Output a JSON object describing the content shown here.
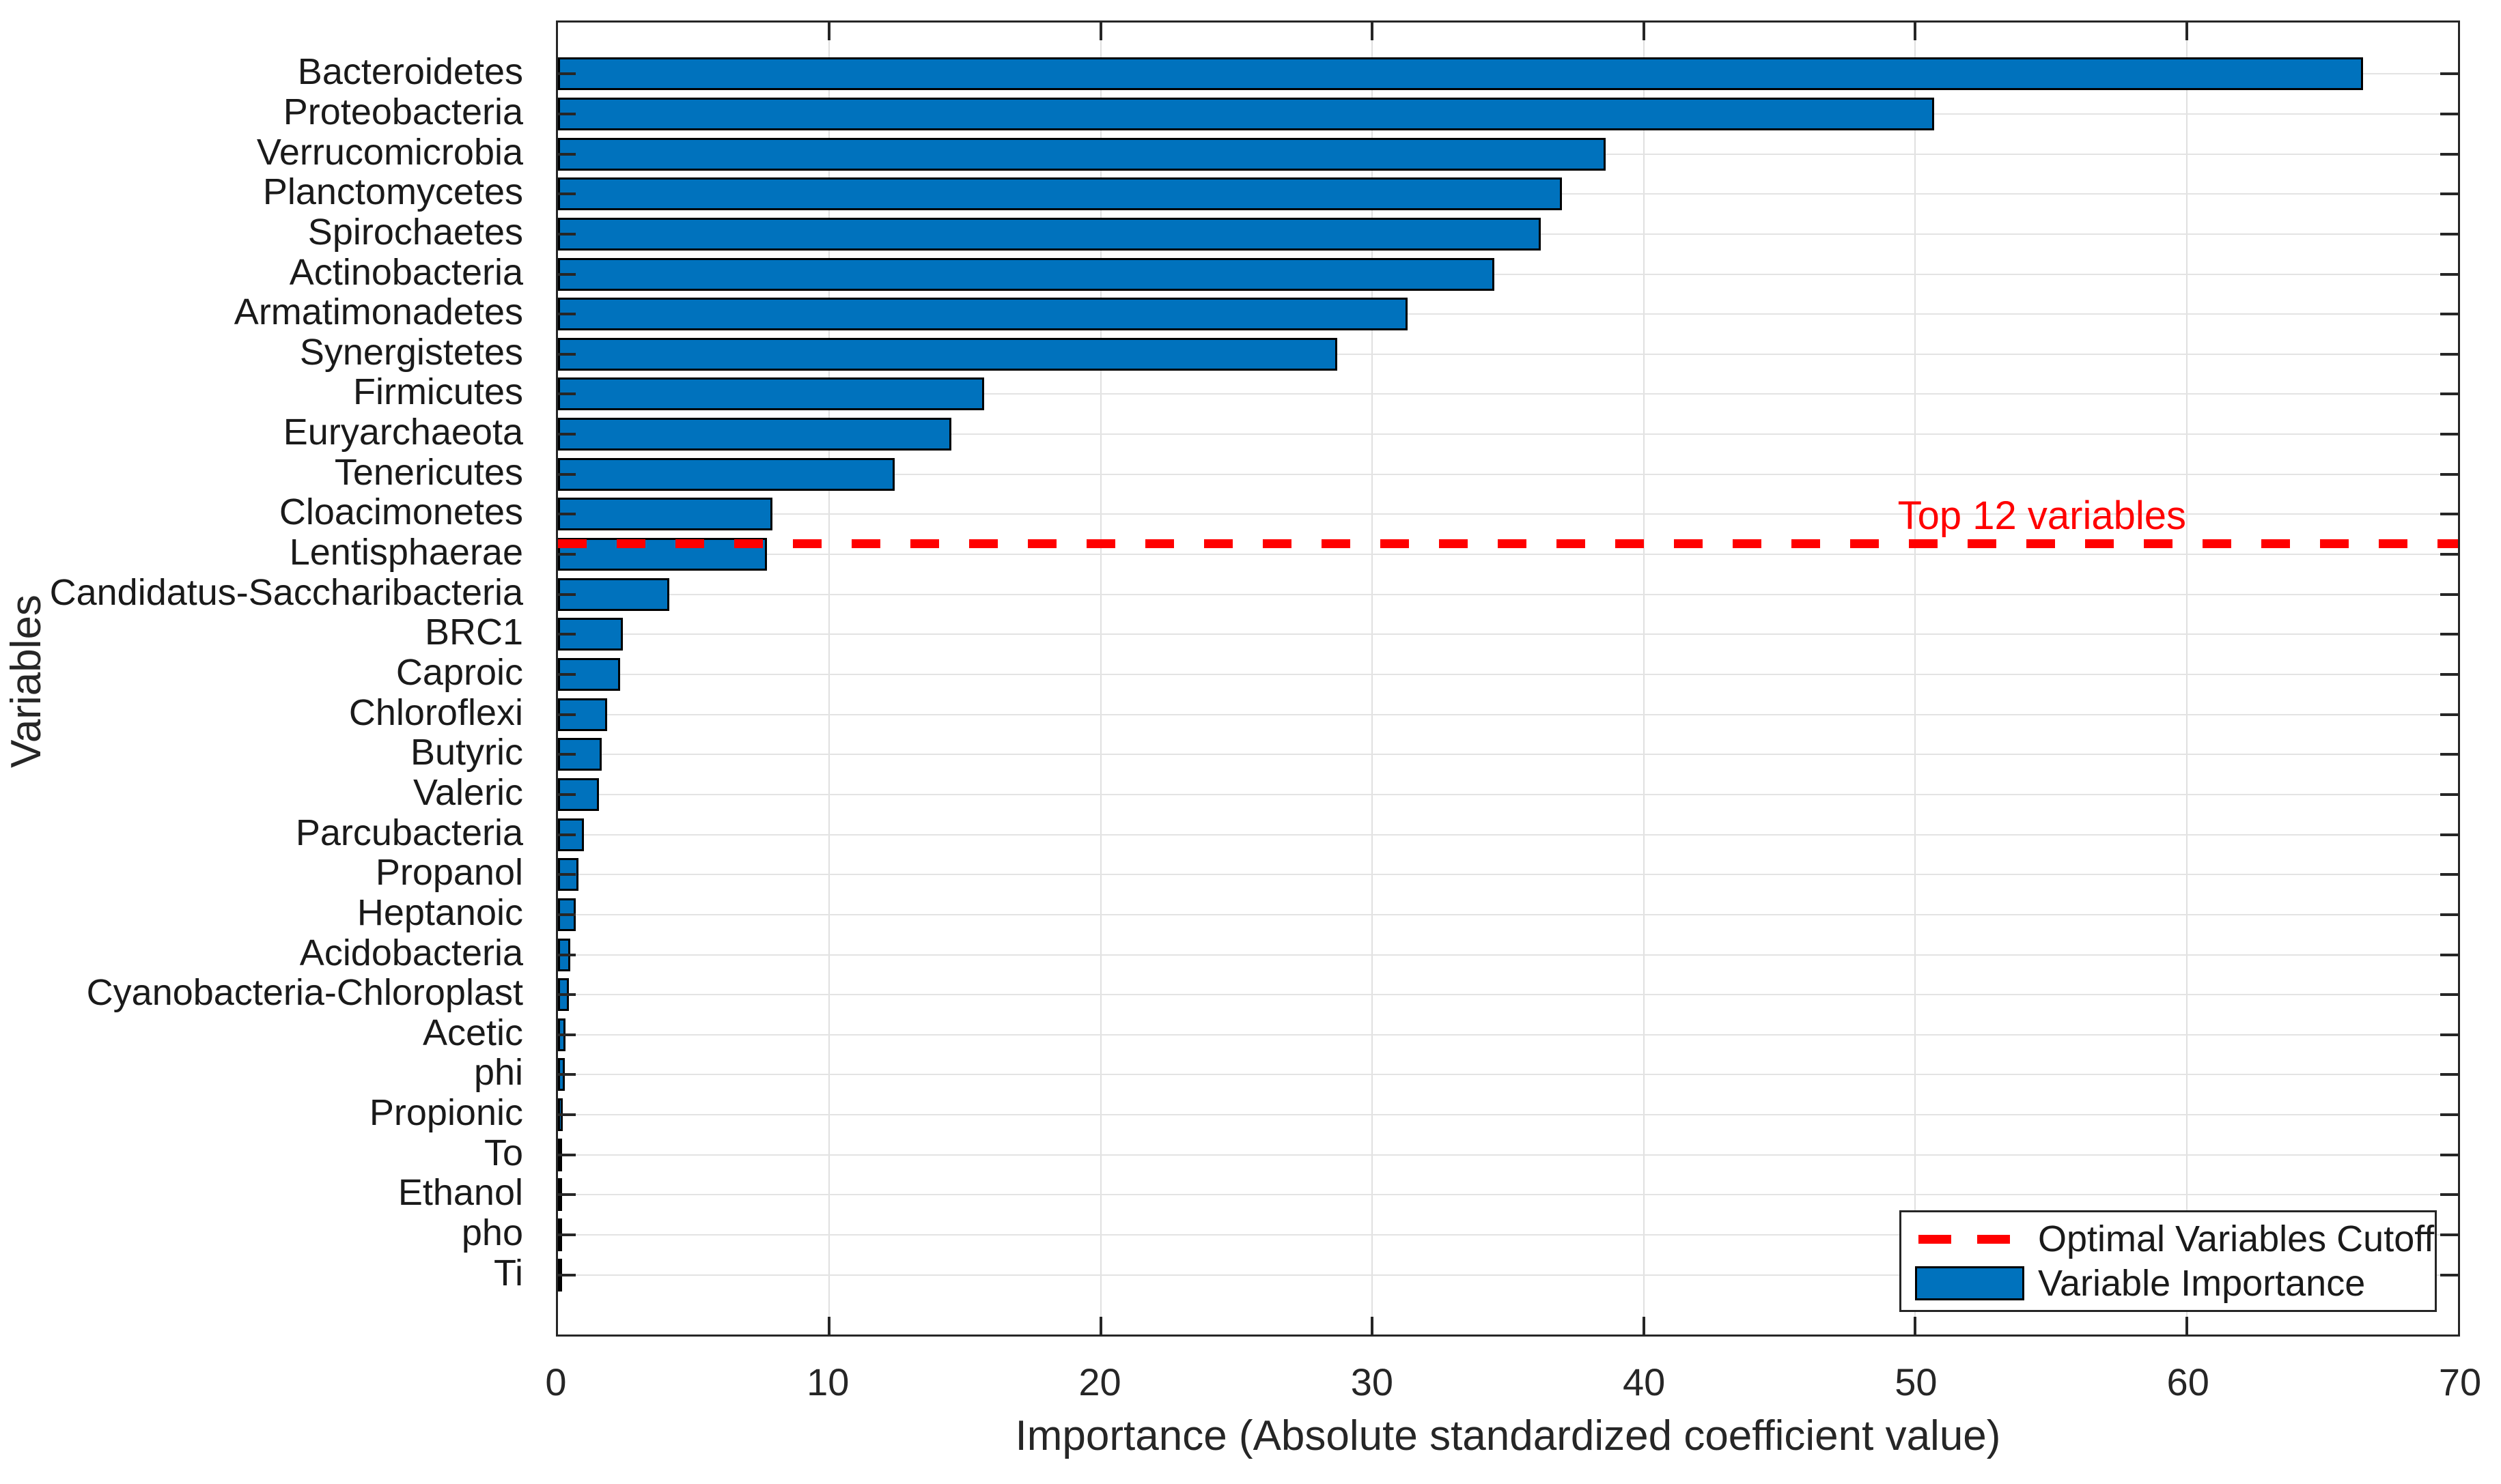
{
  "figure": {
    "background": "#ffffff",
    "title": "",
    "xlabel": "Importance (Absolute standardized coefficient value)",
    "ylabel": "Variables",
    "annotation": {
      "text": "Top 12 variables",
      "color": "#ff0000"
    },
    "legend": {
      "position": "southeast",
      "items": [
        {
          "label": "Optimal Variables Cutoff",
          "marker": "red-dashed-line",
          "color": "#ff0000"
        },
        {
          "label": "Variable Importance",
          "marker": "blue-filled-bar",
          "color": "#0072bd"
        }
      ]
    }
  },
  "chart_data": {
    "type": "bar",
    "orientation": "horizontal",
    "title": "",
    "xlabel": "Importance (Absolute standardized coefficient value)",
    "ylabel": "Variables",
    "xlim": [
      0,
      70
    ],
    "xticks": [
      0,
      10,
      20,
      30,
      40,
      50,
      60,
      70
    ],
    "grid": true,
    "bar_color": "#0072bd",
    "bar_edge_color": "#000000",
    "grid_color": "#e0e0e0",
    "axis_color": "#262626",
    "categories": [
      "Bacteroidetes",
      "Proteobacteria",
      "Verrucomicrobia",
      "Planctomycetes",
      "Spirochaetes",
      "Actinobacteria",
      "Armatimonadetes",
      "Synergistetes",
      "Firmicutes",
      "Euryarchaeota",
      "Tenericutes",
      "Cloacimonetes",
      "Lentisphaerae",
      "Candidatus-Saccharibacteria",
      "BRC1",
      "Caproic",
      "Chloroflexi",
      "Butyric",
      "Valeric",
      "Parcubacteria",
      "Propanol",
      "Heptanoic",
      "Acidobacteria",
      "Cyanobacteria-Chloroplast",
      "Acetic",
      "phi",
      "Propionic",
      "To",
      "Ethanol",
      "pho",
      "Ti"
    ],
    "values": [
      66.5,
      50.7,
      38.6,
      37.0,
      36.2,
      34.5,
      31.3,
      28.7,
      15.7,
      14.5,
      12.4,
      7.9,
      7.7,
      4.1,
      2.4,
      2.3,
      1.8,
      1.6,
      1.5,
      0.95,
      0.75,
      0.65,
      0.45,
      0.4,
      0.28,
      0.25,
      0.18,
      0.14,
      0.12,
      0.05,
      0.03
    ],
    "cutoff_line": {
      "after_category_index": 11,
      "style": "dashed",
      "color": "#ff0000",
      "annotation": "Top 12 variables",
      "legend_label": "Optimal Variables Cutoff"
    },
    "series_label": "Variable Importance",
    "legend_position": "southeast"
  }
}
